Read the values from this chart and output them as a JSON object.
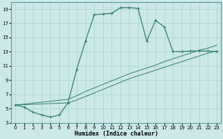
{
  "xlabel": "Humidex (Indice chaleur)",
  "xlim": [
    -0.5,
    23.5
  ],
  "ylim": [
    3,
    20
  ],
  "xticks": [
    0,
    1,
    2,
    3,
    4,
    5,
    6,
    7,
    8,
    9,
    10,
    11,
    12,
    13,
    14,
    15,
    16,
    17,
    18,
    19,
    20,
    21,
    22,
    23
  ],
  "yticks": [
    3,
    5,
    7,
    9,
    11,
    13,
    15,
    17,
    19
  ],
  "line_color": "#2e7d6e",
  "bg_color": "#cce8e8",
  "grid_color": "#aad0d0",
  "curve1_x": [
    0,
    1,
    2,
    3,
    4,
    5,
    6,
    7,
    8,
    9,
    10,
    11,
    12,
    13,
    14,
    15,
    16,
    17,
    18,
    19,
    20,
    21,
    22,
    23
  ],
  "curve1_y": [
    5.5,
    5.2,
    4.5,
    4.1,
    3.8,
    4.1,
    5.8,
    10.5,
    14.5,
    18.2,
    18.3,
    18.4,
    19.2,
    19.2,
    19.1,
    14.5,
    17.4,
    16.5,
    13.0,
    13.0,
    13.1,
    13.1,
    13.1,
    13.0
  ],
  "curve2_x": [
    0,
    6,
    7,
    8,
    9,
    10,
    11,
    12,
    13,
    14,
    15,
    16,
    17,
    18,
    19,
    20,
    21,
    22,
    23
  ],
  "curve2_y": [
    5.5,
    5.8,
    6.2,
    6.7,
    7.2,
    7.7,
    8.2,
    8.7,
    9.2,
    9.6,
    10.0,
    10.4,
    10.8,
    11.2,
    11.6,
    12.0,
    12.4,
    12.8,
    13.1
  ],
  "curve3_x": [
    0,
    6,
    7,
    8,
    9,
    10,
    11,
    12,
    13,
    14,
    15,
    16,
    17,
    18,
    19,
    20,
    21,
    22,
    23
  ],
  "curve3_y": [
    5.5,
    6.3,
    6.8,
    7.4,
    7.9,
    8.4,
    8.9,
    9.4,
    9.9,
    10.3,
    10.7,
    11.1,
    11.6,
    12.0,
    12.4,
    12.8,
    13.2,
    13.5,
    13.9
  ]
}
